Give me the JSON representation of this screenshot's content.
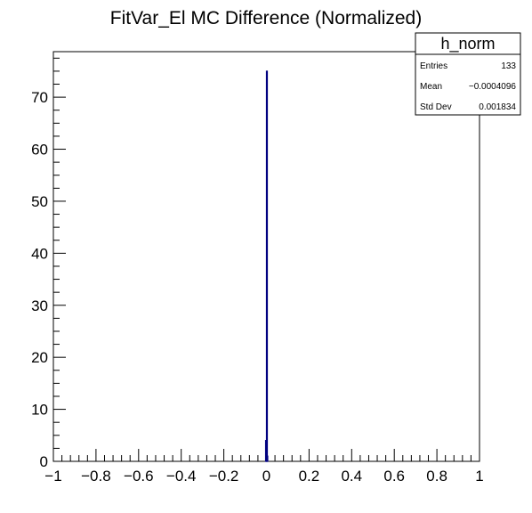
{
  "chart_data": {
    "type": "histogram",
    "title": "FitVar_El MC Difference (Normalized)",
    "xlabel": "",
    "ylabel": "",
    "xlim": [
      -1,
      1
    ],
    "ylim": [
      0,
      78.75
    ],
    "x_ticks": [
      -1,
      -0.8,
      -0.6,
      -0.4,
      -0.2,
      0,
      0.2,
      0.4,
      0.6,
      0.8,
      1
    ],
    "x_tick_labels": [
      "−1",
      "−0.8",
      "−0.6",
      "−0.4",
      "−0.2",
      "0",
      "0.2",
      "0.4",
      "0.6",
      "0.8",
      "1"
    ],
    "y_ticks": [
      0,
      10,
      20,
      30,
      40,
      50,
      60,
      70
    ],
    "y_tick_labels": [
      "0",
      "10",
      "20",
      "30",
      "40",
      "50",
      "60",
      "70"
    ],
    "line_color": "#000080",
    "bins": [
      {
        "x_low": -0.004,
        "x_high": 0.0,
        "value": 4
      },
      {
        "x_low": 0.0,
        "x_high": 0.002,
        "value": 75
      },
      {
        "x_low": 0.002,
        "x_high": 0.004,
        "value": 1
      }
    ],
    "stats_box": {
      "name": "h_norm",
      "rows": [
        {
          "label": "Entries",
          "value": "133"
        },
        {
          "label": "Mean",
          "value": "−0.0004096"
        },
        {
          "label": "Std Dev",
          "value": "0.001834"
        }
      ]
    }
  }
}
